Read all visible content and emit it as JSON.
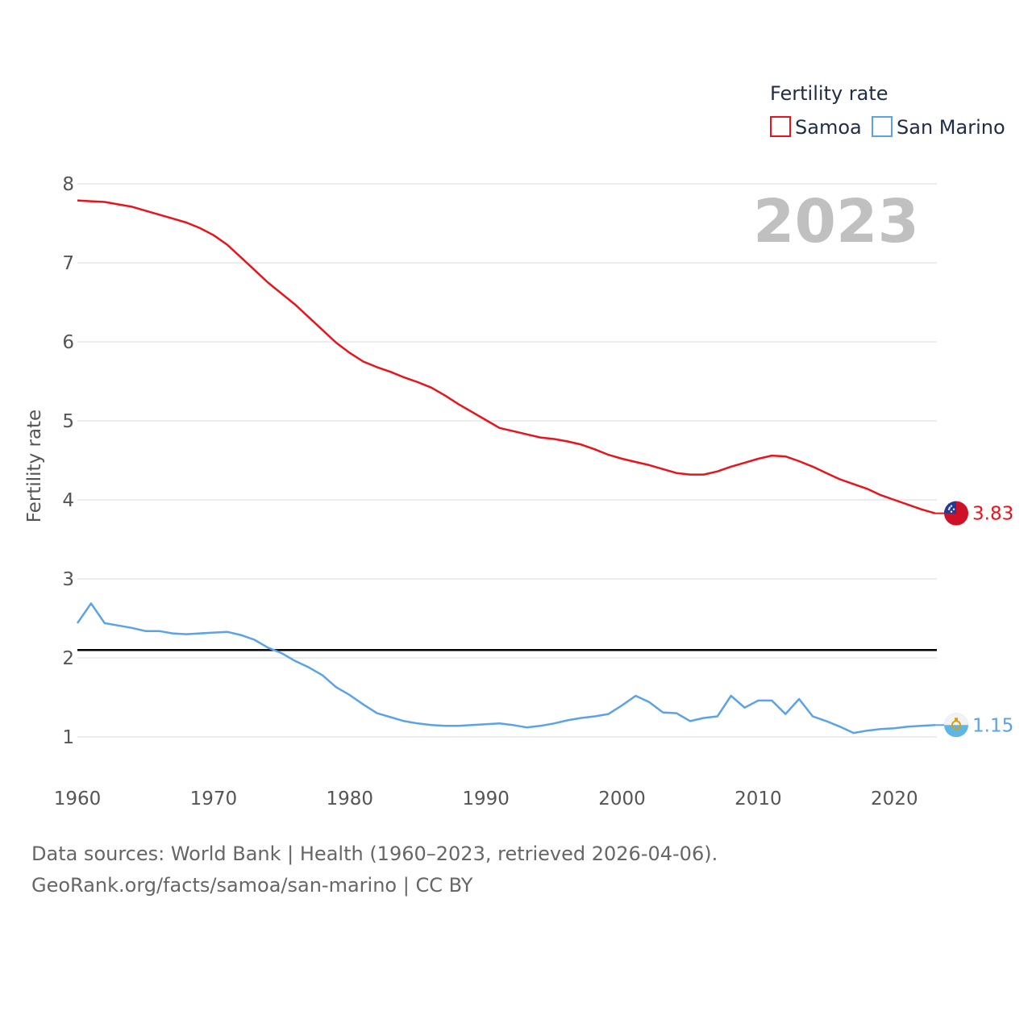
{
  "chart_data": {
    "type": "line",
    "legend_title": "Fertility rate",
    "legend_position": "top-right",
    "ylabel": "Fertility rate",
    "xlabel": "",
    "year_display": "2023",
    "xlim": [
      1960,
      2023
    ],
    "ylim": [
      0.5,
      8
    ],
    "x_ticks": [
      1960,
      1970,
      1980,
      1990,
      2000,
      2010,
      2020
    ],
    "y_ticks": [
      1,
      2,
      3,
      4,
      5,
      6,
      7,
      8
    ],
    "reference_line": 2.1,
    "x": [
      1960,
      1961,
      1962,
      1963,
      1964,
      1965,
      1966,
      1967,
      1968,
      1969,
      1970,
      1971,
      1972,
      1973,
      1974,
      1975,
      1976,
      1977,
      1978,
      1979,
      1980,
      1981,
      1982,
      1983,
      1984,
      1985,
      1986,
      1987,
      1988,
      1989,
      1990,
      1991,
      1992,
      1993,
      1994,
      1995,
      1996,
      1997,
      1998,
      1999,
      2000,
      2001,
      2002,
      2003,
      2004,
      2005,
      2006,
      2007,
      2008,
      2009,
      2010,
      2011,
      2012,
      2013,
      2014,
      2015,
      2016,
      2017,
      2018,
      2019,
      2020,
      2021,
      2022,
      2023
    ],
    "series": [
      {
        "name": "Samoa",
        "color": "#e8141c",
        "end_label": "3.83",
        "flag": "samoa-flag-icon",
        "values": [
          7.79,
          7.78,
          7.77,
          7.74,
          7.71,
          7.66,
          7.61,
          7.56,
          7.51,
          7.44,
          7.35,
          7.23,
          7.07,
          6.91,
          6.75,
          6.61,
          6.47,
          6.31,
          6.15,
          5.99,
          5.86,
          5.75,
          5.68,
          5.62,
          5.55,
          5.49,
          5.42,
          5.32,
          5.21,
          5.11,
          5.01,
          4.91,
          4.87,
          4.83,
          4.79,
          4.77,
          4.74,
          4.7,
          4.64,
          4.57,
          4.52,
          4.48,
          4.44,
          4.39,
          4.34,
          4.32,
          4.32,
          4.36,
          4.42,
          4.47,
          4.52,
          4.56,
          4.55,
          4.49,
          4.42,
          4.34,
          4.26,
          4.2,
          4.14,
          4.06,
          4.0,
          3.94,
          3.88,
          3.83
        ]
      },
      {
        "name": "San Marino",
        "color": "#5aa3e6",
        "end_label": "1.15",
        "flag": "san-marino-flag-icon",
        "values": [
          2.44,
          2.69,
          2.44,
          2.41,
          2.38,
          2.34,
          2.34,
          2.31,
          2.3,
          2.31,
          2.32,
          2.33,
          2.29,
          2.23,
          2.13,
          2.06,
          1.96,
          1.88,
          1.78,
          1.63,
          1.53,
          1.41,
          1.3,
          1.25,
          1.2,
          1.17,
          1.15,
          1.14,
          1.14,
          1.15,
          1.16,
          1.17,
          1.15,
          1.12,
          1.14,
          1.17,
          1.21,
          1.24,
          1.26,
          1.29,
          1.4,
          1.52,
          1.44,
          1.31,
          1.3,
          1.2,
          1.24,
          1.26,
          1.52,
          1.37,
          1.46,
          1.46,
          1.29,
          1.48,
          1.26,
          1.2,
          1.13,
          1.05,
          1.08,
          1.1,
          1.11,
          1.13,
          1.14,
          1.15
        ]
      }
    ]
  },
  "footer": {
    "sources": "Data sources: World Bank | Health (1960–2023, retrieved 2026-04-06).",
    "link": "GeoRank.org/facts/samoa/san-marino | CC BY"
  }
}
